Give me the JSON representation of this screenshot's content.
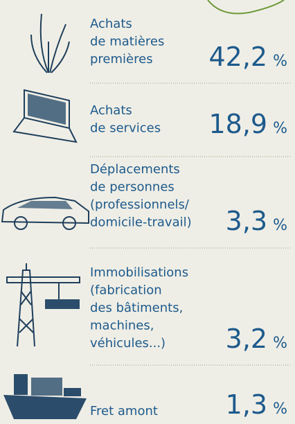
{
  "items": [
    {
      "lines": [
        "Achats",
        "de matières",
        "premières"
      ],
      "value": "42,2",
      "unit": "%"
    },
    {
      "lines": [
        "Achats",
        "de services"
      ],
      "value": "18,9",
      "unit": "%"
    },
    {
      "lines": [
        "Déplacements",
        "de personnes",
        "(professionnels/",
        "domicile-travail)"
      ],
      "value": "3,3",
      "unit": "%"
    },
    {
      "lines": [
        "Immobilisations",
        "(fabrication",
        "des bâtiments,",
        "machines,",
        "véhicules...)"
      ],
      "value": "3,2",
      "unit": "%"
    },
    {
      "lines": [
        "Fret amont"
      ],
      "value": "1,3",
      "unit": "%"
    }
  ]
}
